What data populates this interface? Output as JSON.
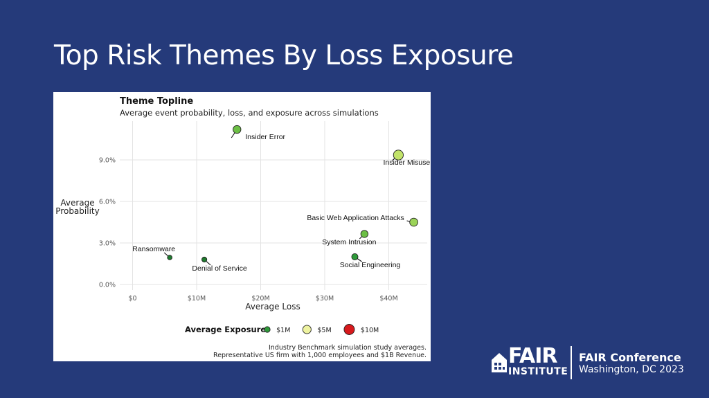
{
  "slide": {
    "title": "Top Risk Themes By Loss Exposure"
  },
  "chart_data": {
    "type": "scatter",
    "title": "Theme Topline",
    "subtitle": "Average event probability, loss, and exposure across simulations",
    "xlabel": "Average Loss",
    "ylabel_lines": [
      "Average",
      "Probability"
    ],
    "xlim": [
      -2,
      46
    ],
    "ylim": [
      -0.4,
      11.8
    ],
    "x_ticks": [
      0,
      10,
      20,
      30,
      40
    ],
    "x_tick_labels": [
      "$0",
      "$10M",
      "$20M",
      "$30M",
      "$40M"
    ],
    "y_ticks": [
      0,
      3,
      6,
      9
    ],
    "y_tick_labels": [
      "0.0%",
      "3.0%",
      "6.0%",
      "9.0%"
    ],
    "grid": true,
    "points": [
      {
        "label": "Insider Error",
        "x": 16.3,
        "y": 11.2,
        "exposure": 1.8,
        "color": "#6cbf45"
      },
      {
        "label": "Insider Misuse",
        "x": 41.5,
        "y": 9.35,
        "exposure": 3.9,
        "color": "#c2e36a"
      },
      {
        "label": "Basic Web Application Attacks",
        "x": 43.9,
        "y": 4.5,
        "exposure": 2.0,
        "color": "#9bd358"
      },
      {
        "label": "System Intrusion",
        "x": 36.2,
        "y": 3.65,
        "exposure": 1.3,
        "color": "#6cbf45"
      },
      {
        "label": "Social Engineering",
        "x": 34.7,
        "y": 2.0,
        "exposure": 0.7,
        "color": "#2e9a3a"
      },
      {
        "label": "Ransomware",
        "x": 5.8,
        "y": 1.95,
        "exposure": 0.1,
        "color": "#1f7a2e"
      },
      {
        "label": "Denial of Service",
        "x": 11.2,
        "y": 1.8,
        "exposure": 0.2,
        "color": "#1f7a2e"
      }
    ],
    "legend": {
      "title": "Average Exposure",
      "placement": "bottom",
      "items": [
        {
          "label": "$1M",
          "value": 1,
          "color": "#2e9a3a"
        },
        {
          "label": "$5M",
          "value": 5,
          "color": "#eef3a0"
        },
        {
          "label": "$10M",
          "value": 10,
          "color": "#d7191c"
        }
      ]
    },
    "caption_lines": [
      "Industry Benchmark simulation study averages.",
      "Representative US firm with 1,000 employees and $1B Revenue."
    ]
  },
  "footer": {
    "logo_word": "FAIR",
    "logo_sub": "INSTITUTE",
    "conference_name": "FAIR Conference",
    "conference_place": "Washington, DC 2023"
  }
}
